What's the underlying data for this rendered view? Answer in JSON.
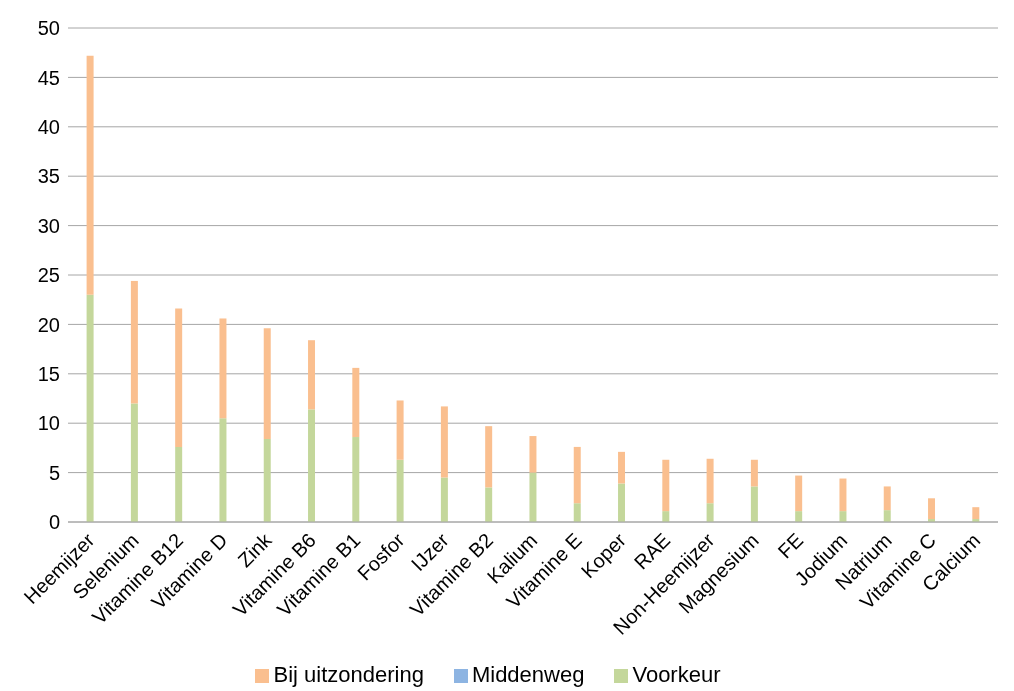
{
  "chart_data": {
    "type": "bar",
    "stacked": true,
    "categories": [
      "Heemijzer",
      "Selenium",
      "Vitamine B12",
      "Vitamine D",
      "Zink",
      "Vitamine B6",
      "Vitamine B1",
      "Fosfor",
      "IJzer",
      "Vitamine B2",
      "Kalium",
      "Vitamine E",
      "Koper",
      "RAE",
      "Non-Heemijzer",
      "Magnesium",
      "FE",
      "Jodium",
      "Natrium",
      "Vitamine C",
      "Calcium"
    ],
    "series": [
      {
        "name": "Voorkeur",
        "color": "#c4d79b",
        "values": [
          23,
          12,
          7.6,
          10.5,
          8.4,
          11.4,
          8.6,
          6.3,
          4.5,
          3.5,
          5,
          1.9,
          3.9,
          1.1,
          1.9,
          3.6,
          1.1,
          1.1,
          1.2,
          0.3,
          0.3
        ]
      },
      {
        "name": "Middenweg",
        "color": "#8db4e2",
        "values": [
          0,
          0,
          0,
          0,
          0,
          0,
          0,
          0,
          0,
          0,
          0,
          0,
          0,
          0,
          0,
          0,
          0,
          0,
          0,
          0,
          0
        ]
      },
      {
        "name": "Bij uitzondering",
        "color": "#fabf8f",
        "values": [
          24.2,
          12.4,
          14,
          10.1,
          11.2,
          7,
          7,
          6,
          7.2,
          6.2,
          3.7,
          5.7,
          3.2,
          5.2,
          4.5,
          2.7,
          3.6,
          3.3,
          2.4,
          2.1,
          1.2
        ]
      }
    ],
    "ylim": [
      0,
      50
    ],
    "yticks": [
      0,
      5,
      10,
      15,
      20,
      25,
      30,
      35,
      40,
      45,
      50
    ],
    "grid": "y",
    "legend": "bottom"
  }
}
